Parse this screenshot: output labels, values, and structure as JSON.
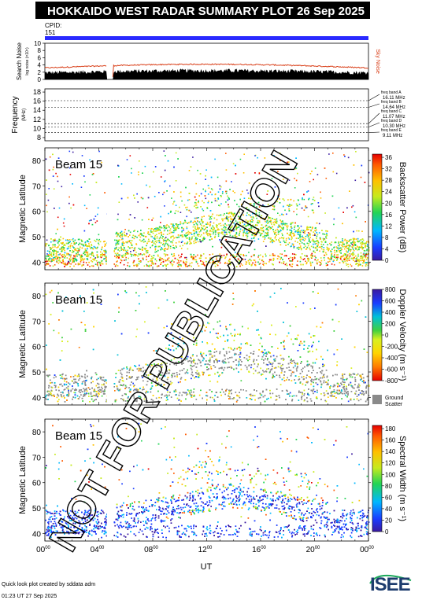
{
  "header": {
    "title": "HOKKAIDO WEST RADAR SUMMARY PLOT",
    "date": "26 Sep 2025"
  },
  "cpid": {
    "label": "CPID:",
    "value": "151"
  },
  "search_noise": {
    "ylabel": "Search Noise",
    "ylabel_small": "log noise (×10⁵)",
    "sky_label": "Sky Noise",
    "ticks": [
      "0",
      "2",
      "4",
      "6",
      "8",
      "10"
    ],
    "sky_color": "#d9401a",
    "search_color": "#000000"
  },
  "frequency": {
    "ylabel": "Frequency",
    "unit": "(MHz)",
    "ticks": [
      "8",
      "10",
      "12",
      "14",
      "16",
      "18"
    ],
    "bands": [
      {
        "label": "freq band A",
        "value": "16.11 MHz"
      },
      {
        "label": "freq band B",
        "value": "14.64 MHz"
      },
      {
        "label": "freq band C",
        "value": "11.07 MHz"
      },
      {
        "label": "freq band D",
        "value": "10.30 MHz"
      },
      {
        "label": "freq band E",
        "value": "9.11 MHz"
      }
    ]
  },
  "panels": [
    {
      "beam": "Beam 15",
      "ylabel": "Magnetic Latitude",
      "yticks": [
        "40",
        "50",
        "60",
        "70",
        "80"
      ],
      "cbar_label": "Backscatter Power (dB)",
      "cbar_ticks": [
        "0",
        "4",
        "8",
        "12",
        "16",
        "20",
        "24",
        "28",
        "32",
        "36"
      ]
    },
    {
      "beam": "Beam 15",
      "ylabel": "Magnetic Latitude",
      "yticks": [
        "40",
        "50",
        "60",
        "70",
        "80"
      ],
      "cbar_label": "Doppler Velocity (m s⁻¹)",
      "cbar_ticks": [
        "-800",
        "-600",
        "-400",
        "-200",
        "0",
        "200",
        "400",
        "600",
        "800"
      ],
      "ground_label_1": "Ground",
      "ground_label_2": "Scatter"
    },
    {
      "beam": "Beam 15",
      "ylabel": "Magnetic Latitude",
      "yticks": [
        "40",
        "50",
        "60",
        "70",
        "80"
      ],
      "cbar_label": "Spectral Width (m s⁻¹)",
      "cbar_ticks": [
        "0",
        "20",
        "40",
        "60",
        "80",
        "100",
        "120",
        "140",
        "160",
        "180"
      ]
    }
  ],
  "xaxis": {
    "label": "UT",
    "ticks": [
      "00",
      "04",
      "08",
      "12",
      "16",
      "20",
      "00"
    ],
    "tick_suffix": "00"
  },
  "watermark": "NOT FOR PUBLICATION",
  "footer": {
    "credit": "Quick look plot created by sddata adm",
    "timestamp": "01:23 UT 27 Sep 2025",
    "logo": "ISEE"
  },
  "chart_data": {
    "type": "heatmap",
    "title": "HOKKAIDO WEST RADAR SUMMARY PLOT",
    "date": "26 Sep 2025",
    "x_range_ut_hours": [
      0,
      24
    ],
    "y_range_mlat": [
      37,
      85
    ],
    "data_gap_ut_hours": [
      4.6,
      5.1
    ],
    "cpid": "151",
    "frequency_bands_mhz": [
      16.11,
      14.64,
      11.07,
      10.3,
      9.11
    ],
    "search_noise_level": {
      "sky_noise_approx": [
        3.5,
        4.5
      ],
      "search_noise_approx": [
        1.5,
        2.5
      ],
      "ylim": [
        0,
        10
      ]
    },
    "panels": [
      {
        "quantity": "Backscatter Power",
        "unit": "dB",
        "colorbar_range": [
          0,
          36
        ]
      },
      {
        "quantity": "Doppler Velocity",
        "unit": "m s⁻¹",
        "colorbar_range": [
          -800,
          800
        ],
        "ground_scatter_color": "#808080"
      },
      {
        "quantity": "Spectral Width",
        "unit": "m s⁻¹",
        "colorbar_range": [
          0,
          180
        ]
      }
    ]
  }
}
